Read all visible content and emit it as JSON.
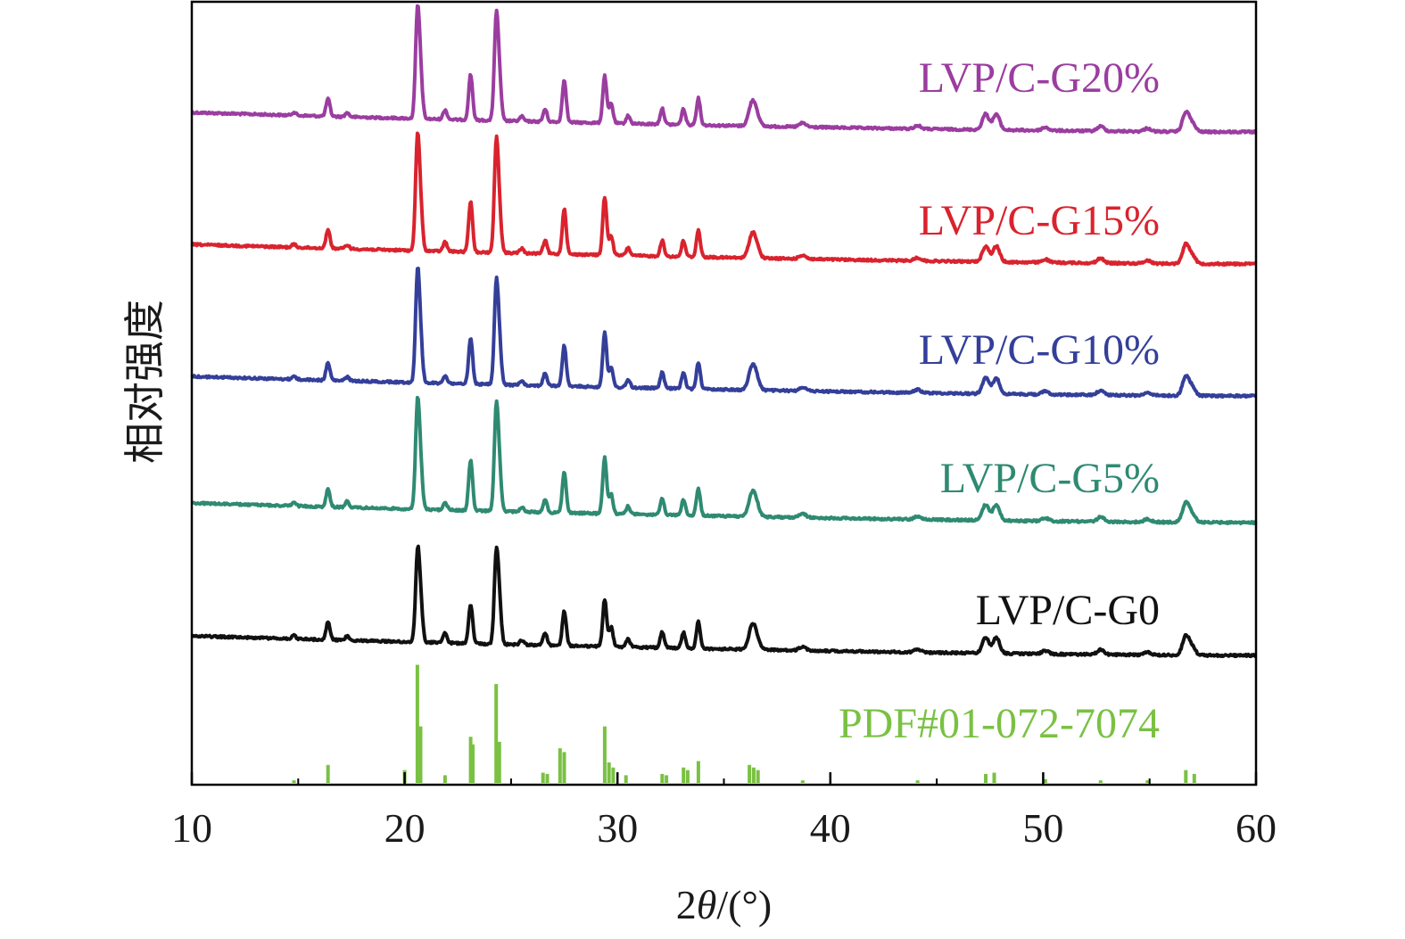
{
  "chart_data": {
    "type": "line",
    "title": "",
    "xlabel": "2θ/(°)",
    "ylabel": "相对强度",
    "xlim": [
      10,
      60
    ],
    "xticks": [
      "10",
      "20",
      "30",
      "40",
      "50",
      "60"
    ],
    "yticks_shown": false,
    "grid": false,
    "legend_placement": "inline labels at right of each trace",
    "peaks_2theta": [
      14.8,
      16.4,
      17.3,
      20.6,
      20.75,
      21.9,
      23.1,
      24.3,
      24.45,
      25.5,
      26.6,
      27.5,
      29.4,
      29.7,
      30.5,
      32.1,
      33.1,
      33.8,
      36.3,
      36.5,
      38.7,
      44.1,
      47.3,
      47.8,
      50.1,
      52.7,
      54.9,
      56.7,
      57.0
    ],
    "series": [
      {
        "name": "LVP/C-G20%",
        "color": "#9b3da0",
        "baseline_left": 0.138,
        "baseline_right": 0.0,
        "peak_heights": [
          0.004,
          0.022,
          0.005,
          0.13,
          0.05,
          0.012,
          0.058,
          0.124,
          0.05,
          0.006,
          0.016,
          0.054,
          0.06,
          0.025,
          0.01,
          0.02,
          0.02,
          0.034,
          0.024,
          0.016,
          0.005,
          0.004,
          0.02,
          0.02,
          0.004,
          0.006,
          0.004,
          0.024,
          0.01
        ]
      },
      {
        "name": "LVP/C-G15%",
        "color": "#d9232e",
        "baseline_left": 0.138,
        "baseline_right": 0.0,
        "peak_heights": [
          0.004,
          0.024,
          0.005,
          0.136,
          0.05,
          0.012,
          0.064,
          0.132,
          0.05,
          0.006,
          0.017,
          0.058,
          0.074,
          0.025,
          0.01,
          0.02,
          0.02,
          0.034,
          0.024,
          0.016,
          0.005,
          0.004,
          0.02,
          0.02,
          0.004,
          0.006,
          0.004,
          0.024,
          0.01
        ]
      },
      {
        "name": "LVP/C-G10%",
        "color": "#343f9a",
        "baseline_left": 0.138,
        "baseline_right": 0.0,
        "peak_heights": [
          0.004,
          0.022,
          0.005,
          0.132,
          0.05,
          0.01,
          0.058,
          0.12,
          0.05,
          0.006,
          0.016,
          0.052,
          0.07,
          0.025,
          0.01,
          0.02,
          0.02,
          0.034,
          0.024,
          0.016,
          0.005,
          0.004,
          0.02,
          0.02,
          0.004,
          0.006,
          0.004,
          0.024,
          0.01
        ]
      },
      {
        "name": "LVP/C-G5%",
        "color": "#2f8a72",
        "baseline_left": 0.138,
        "baseline_right": 0.0,
        "peak_heights": [
          0.004,
          0.022,
          0.008,
          0.128,
          0.05,
          0.01,
          0.064,
          0.124,
          0.05,
          0.006,
          0.016,
          0.052,
          0.072,
          0.025,
          0.01,
          0.02,
          0.02,
          0.034,
          0.024,
          0.016,
          0.005,
          0.004,
          0.02,
          0.02,
          0.004,
          0.006,
          0.004,
          0.024,
          0.01
        ]
      },
      {
        "name": "LVP/C-G0",
        "color": "#111111",
        "baseline_left": 0.138,
        "baseline_right": 0.0,
        "peak_heights": [
          0.004,
          0.022,
          0.005,
          0.106,
          0.05,
          0.012,
          0.05,
          0.108,
          0.05,
          0.006,
          0.016,
          0.044,
          0.06,
          0.025,
          0.01,
          0.02,
          0.02,
          0.034,
          0.024,
          0.016,
          0.005,
          0.004,
          0.02,
          0.02,
          0.004,
          0.006,
          0.004,
          0.024,
          0.01
        ]
      }
    ],
    "reference": {
      "name": "PDF#01-072-7074",
      "color": "#7ac143",
      "type": "stick",
      "peaks": [
        {
          "x": 14.8,
          "h": 0.02
        },
        {
          "x": 16.4,
          "h": 0.14
        },
        {
          "x": 20.0,
          "h": 0.1
        },
        {
          "x": 20.6,
          "h": 0.92
        },
        {
          "x": 20.75,
          "h": 0.44
        },
        {
          "x": 21.9,
          "h": 0.06
        },
        {
          "x": 23.1,
          "h": 0.36
        },
        {
          "x": 23.2,
          "h": 0.3
        },
        {
          "x": 24.3,
          "h": 0.77
        },
        {
          "x": 24.45,
          "h": 0.32
        },
        {
          "x": 26.5,
          "h": 0.08
        },
        {
          "x": 26.7,
          "h": 0.07
        },
        {
          "x": 27.3,
          "h": 0.27
        },
        {
          "x": 27.5,
          "h": 0.24
        },
        {
          "x": 29.4,
          "h": 0.44
        },
        {
          "x": 29.6,
          "h": 0.16
        },
        {
          "x": 29.8,
          "h": 0.12
        },
        {
          "x": 30.4,
          "h": 0.06
        },
        {
          "x": 32.1,
          "h": 0.07
        },
        {
          "x": 32.3,
          "h": 0.06
        },
        {
          "x": 33.1,
          "h": 0.12
        },
        {
          "x": 33.3,
          "h": 0.1
        },
        {
          "x": 33.8,
          "h": 0.17
        },
        {
          "x": 36.2,
          "h": 0.14
        },
        {
          "x": 36.4,
          "h": 0.12
        },
        {
          "x": 36.6,
          "h": 0.1
        },
        {
          "x": 38.7,
          "h": 0.02
        },
        {
          "x": 44.1,
          "h": 0.02
        },
        {
          "x": 47.3,
          "h": 0.07
        },
        {
          "x": 47.7,
          "h": 0.08
        },
        {
          "x": 50.1,
          "h": 0.03
        },
        {
          "x": 52.7,
          "h": 0.02
        },
        {
          "x": 54.9,
          "h": 0.02
        },
        {
          "x": 56.7,
          "h": 0.1
        },
        {
          "x": 57.1,
          "h": 0.07
        }
      ]
    }
  }
}
